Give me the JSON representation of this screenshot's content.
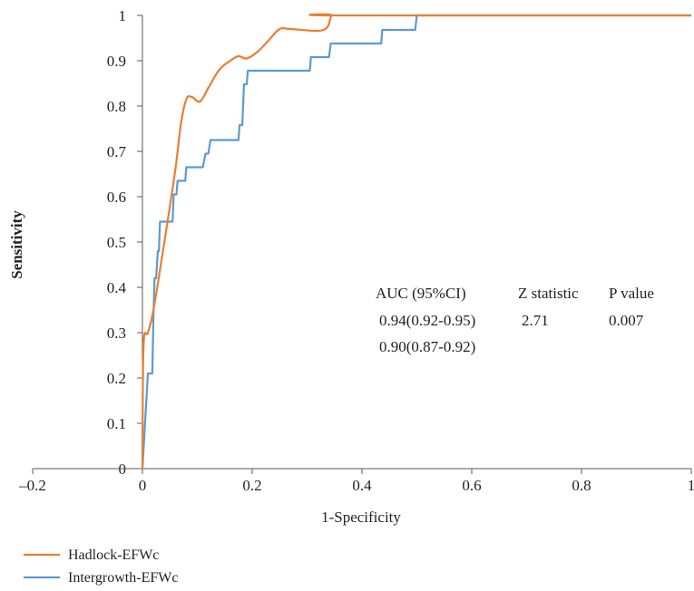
{
  "chart_data": {
    "type": "line",
    "title": "",
    "xlabel": "1-Specificity",
    "ylabel": "Sensitivity",
    "xlim": [
      -0.2,
      1
    ],
    "ylim": [
      0,
      1
    ],
    "x_ticks": [
      "–0.2",
      "0",
      "0.2",
      "0.4",
      "0.6",
      "0.8",
      "1"
    ],
    "y_ticks": [
      "0",
      "0.1",
      "0.2",
      "0.3",
      "0.4",
      "0.5",
      "0.6",
      "0.7",
      "0.8",
      "0.9",
      "1"
    ],
    "grid": false,
    "legend_position": "bottom-left",
    "series": [
      {
        "name": "Hadlock-EFWc",
        "color": "#ed7d31",
        "smooth": true,
        "points": [
          [
            0,
            0
          ],
          [
            0.002,
            0.27
          ],
          [
            0.01,
            0.3
          ],
          [
            0.02,
            0.35
          ],
          [
            0.04,
            0.5
          ],
          [
            0.06,
            0.66
          ],
          [
            0.07,
            0.76
          ],
          [
            0.08,
            0.815
          ],
          [
            0.09,
            0.82
          ],
          [
            0.105,
            0.81
          ],
          [
            0.12,
            0.84
          ],
          [
            0.14,
            0.88
          ],
          [
            0.16,
            0.9
          ],
          [
            0.175,
            0.91
          ],
          [
            0.19,
            0.905
          ],
          [
            0.21,
            0.92
          ],
          [
            0.23,
            0.945
          ],
          [
            0.25,
            0.97
          ],
          [
            0.27,
            0.97
          ],
          [
            0.33,
            0.968
          ],
          [
            0.345,
            1
          ],
          [
            0.36,
            1
          ],
          [
            1,
            1
          ]
        ]
      },
      {
        "name": "Intergrowth-EFWc",
        "color": "#5b9bd5",
        "smooth": false,
        "points": [
          [
            0,
            0
          ],
          [
            0.01,
            0.21
          ],
          [
            0.018,
            0.21
          ],
          [
            0.02,
            0.33
          ],
          [
            0.022,
            0.42
          ],
          [
            0.025,
            0.42
          ],
          [
            0.028,
            0.48
          ],
          [
            0.03,
            0.48
          ],
          [
            0.032,
            0.545
          ],
          [
            0.055,
            0.545
          ],
          [
            0.057,
            0.605
          ],
          [
            0.062,
            0.605
          ],
          [
            0.064,
            0.635
          ],
          [
            0.078,
            0.635
          ],
          [
            0.08,
            0.665
          ],
          [
            0.11,
            0.665
          ],
          [
            0.115,
            0.695
          ],
          [
            0.12,
            0.695
          ],
          [
            0.124,
            0.725
          ],
          [
            0.175,
            0.725
          ],
          [
            0.177,
            0.758
          ],
          [
            0.182,
            0.758
          ],
          [
            0.185,
            0.848
          ],
          [
            0.19,
            0.848
          ],
          [
            0.192,
            0.878
          ],
          [
            0.305,
            0.878
          ],
          [
            0.307,
            0.908
          ],
          [
            0.34,
            0.908
          ],
          [
            0.343,
            0.938
          ],
          [
            0.435,
            0.938
          ],
          [
            0.437,
            0.968
          ],
          [
            0.497,
            0.968
          ],
          [
            0.5,
            1
          ],
          [
            1,
            1
          ]
        ]
      }
    ],
    "annotation_table": {
      "headers": [
        "AUC (95%CI)",
        "Z statistic",
        "P value"
      ],
      "rows": [
        [
          "0.94(0.92-0.95)",
          "2.71",
          "0.007"
        ],
        [
          "0.90(0.87-0.92)",
          "",
          ""
        ]
      ]
    }
  }
}
